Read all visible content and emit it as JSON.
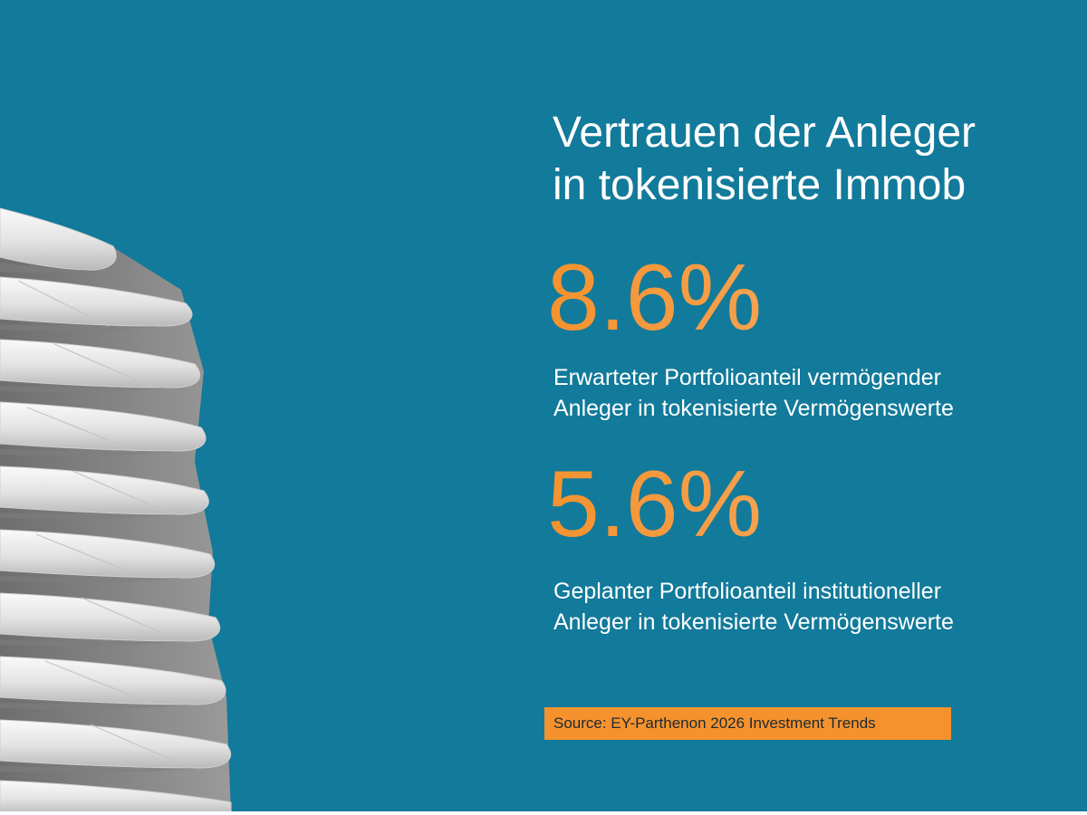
{
  "title": {
    "line1": "Vertrauen der Anleger",
    "line2": "in tokenisierte Immob"
  },
  "stats": [
    {
      "value": "8.6%",
      "description_line1": "Erwarteter Portfolioanteil vermögender",
      "description_line2": "Anleger in tokenisierte Vermögenswerte"
    },
    {
      "value": "5.6%",
      "description_line1": "Geplanter Portfolioanteil institutioneller",
      "description_line2": "Anleger in tokenisierte Vermögenswerte"
    }
  ],
  "source": "Source: EY-Parthenon 2026 Investment Trends",
  "colors": {
    "background": "#127a9a",
    "accent": "#f5922e",
    "text": "#ffffff"
  }
}
